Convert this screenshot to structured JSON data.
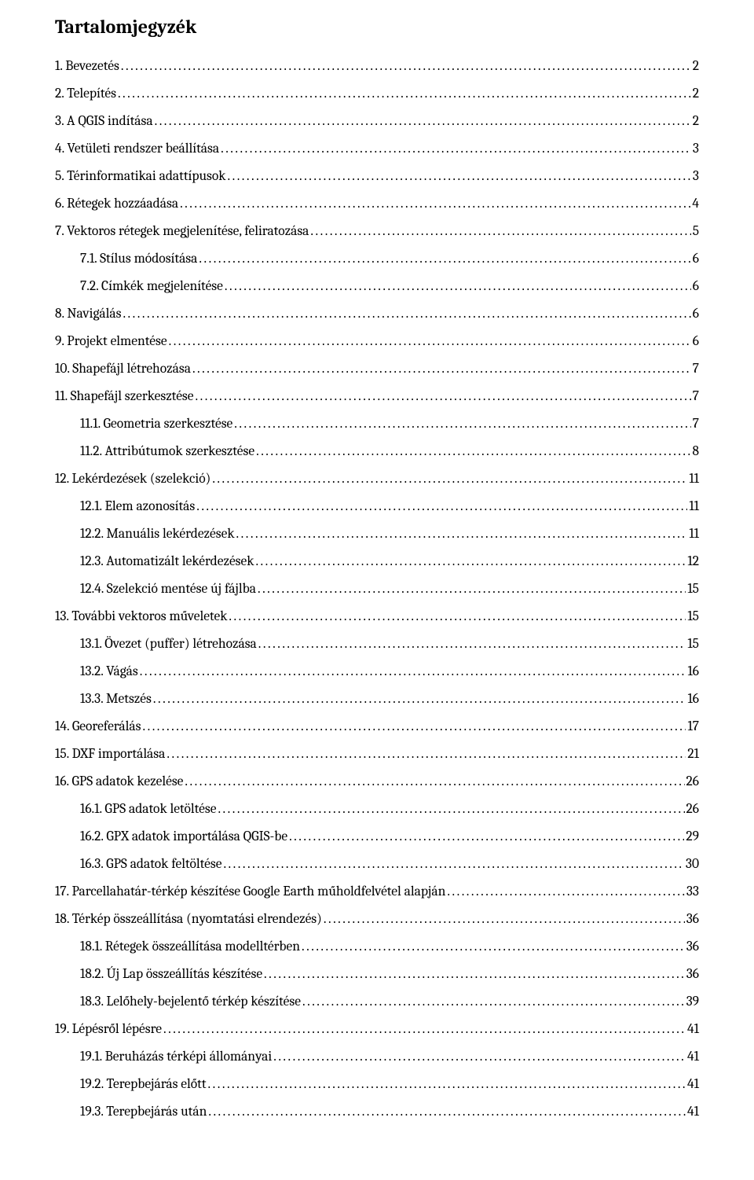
{
  "title": "Tartalomjegyzék",
  "entries": [
    {
      "level": 0,
      "label": "1. Bevezetés",
      "page": "2"
    },
    {
      "level": 0,
      "label": "2. Telepítés",
      "page": "2"
    },
    {
      "level": 0,
      "label": "3. A QGIS indítása",
      "page": "2"
    },
    {
      "level": 0,
      "label": "4. Vetületi rendszer beállítása",
      "page": "3"
    },
    {
      "level": 0,
      "label": "5. Térinformatikai adattípusok",
      "page": "3"
    },
    {
      "level": 0,
      "label": "6. Rétegek hozzáadása",
      "page": "4"
    },
    {
      "level": 0,
      "label": "7. Vektoros rétegek megjelenítése, feliratozása",
      "page": "5"
    },
    {
      "level": 1,
      "label": "7.1. Stílus módosítása",
      "page": "6"
    },
    {
      "level": 1,
      "label": "7.2. Címkék megjelenítése",
      "page": "6"
    },
    {
      "level": 0,
      "label": "8. Navigálás",
      "page": "6"
    },
    {
      "level": 0,
      "label": "9. Projekt elmentése",
      "page": "6"
    },
    {
      "level": 0,
      "label": "10. Shapefájl létrehozása",
      "page": "7"
    },
    {
      "level": 0,
      "label": "11. Shapefájl szerkesztése",
      "page": "7"
    },
    {
      "level": 1,
      "label": "11.1. Geometria szerkesztése",
      "page": "7"
    },
    {
      "level": 1,
      "label": "11.2. Attribútumok szerkesztése",
      "page": "8"
    },
    {
      "level": 0,
      "label": "12. Lekérdezések (szelekció)",
      "page": "11"
    },
    {
      "level": 1,
      "label": "12.1. Elem azonosítás",
      "page": "11"
    },
    {
      "level": 1,
      "label": "12.2. Manuális lekérdezések",
      "page": "11"
    },
    {
      "level": 1,
      "label": "12.3. Automatizált lekérdezések",
      "page": "12"
    },
    {
      "level": 1,
      "label": "12.4. Szelekció mentése új fájlba",
      "page": "15"
    },
    {
      "level": 0,
      "label": "13. További vektoros műveletek",
      "page": "15"
    },
    {
      "level": 1,
      "label": "13.1. Övezet (puffer) létrehozása",
      "page": "15"
    },
    {
      "level": 1,
      "label": "13.2. Vágás",
      "page": "16"
    },
    {
      "level": 1,
      "label": "13.3. Metszés",
      "page": "16"
    },
    {
      "level": 0,
      "label": "14. Georeferálás",
      "page": "17"
    },
    {
      "level": 0,
      "label": "15. DXF importálása",
      "page": "21"
    },
    {
      "level": 0,
      "label": "16. GPS adatok kezelése",
      "page": "26"
    },
    {
      "level": 1,
      "label": "16.1. GPS adatok letöltése",
      "page": "26"
    },
    {
      "level": 1,
      "label": "16.2. GPX adatok importálása QGIS-be",
      "page": "29"
    },
    {
      "level": 1,
      "label": "16.3. GPS adatok feltöltése",
      "page": "30"
    },
    {
      "level": 0,
      "label": "17. Parcellahatár-térkép készítése Google Earth műholdfelvétel alapján",
      "page": "33"
    },
    {
      "level": 0,
      "label": "18. Térkép összeállítása (nyomtatási elrendezés)",
      "page": "36"
    },
    {
      "level": 1,
      "label": "18.1. Rétegek összeállítása modelltérben",
      "page": "36"
    },
    {
      "level": 1,
      "label": "18.2. Új Lap összeállítás készítése",
      "page": "36"
    },
    {
      "level": 1,
      "label": "18.3. Lelőhely-bejelentő térkép készítése",
      "page": "39"
    },
    {
      "level": 0,
      "label": "19. Lépésről lépésre",
      "page": "41"
    },
    {
      "level": 1,
      "label": "19.1. Beruházás térképi állományai",
      "page": "41"
    },
    {
      "level": 1,
      "label": "19.2. Terepbejárás előtt",
      "page": "41"
    },
    {
      "level": 1,
      "label": "19.3. Terepbejárás után",
      "page": "41"
    }
  ]
}
